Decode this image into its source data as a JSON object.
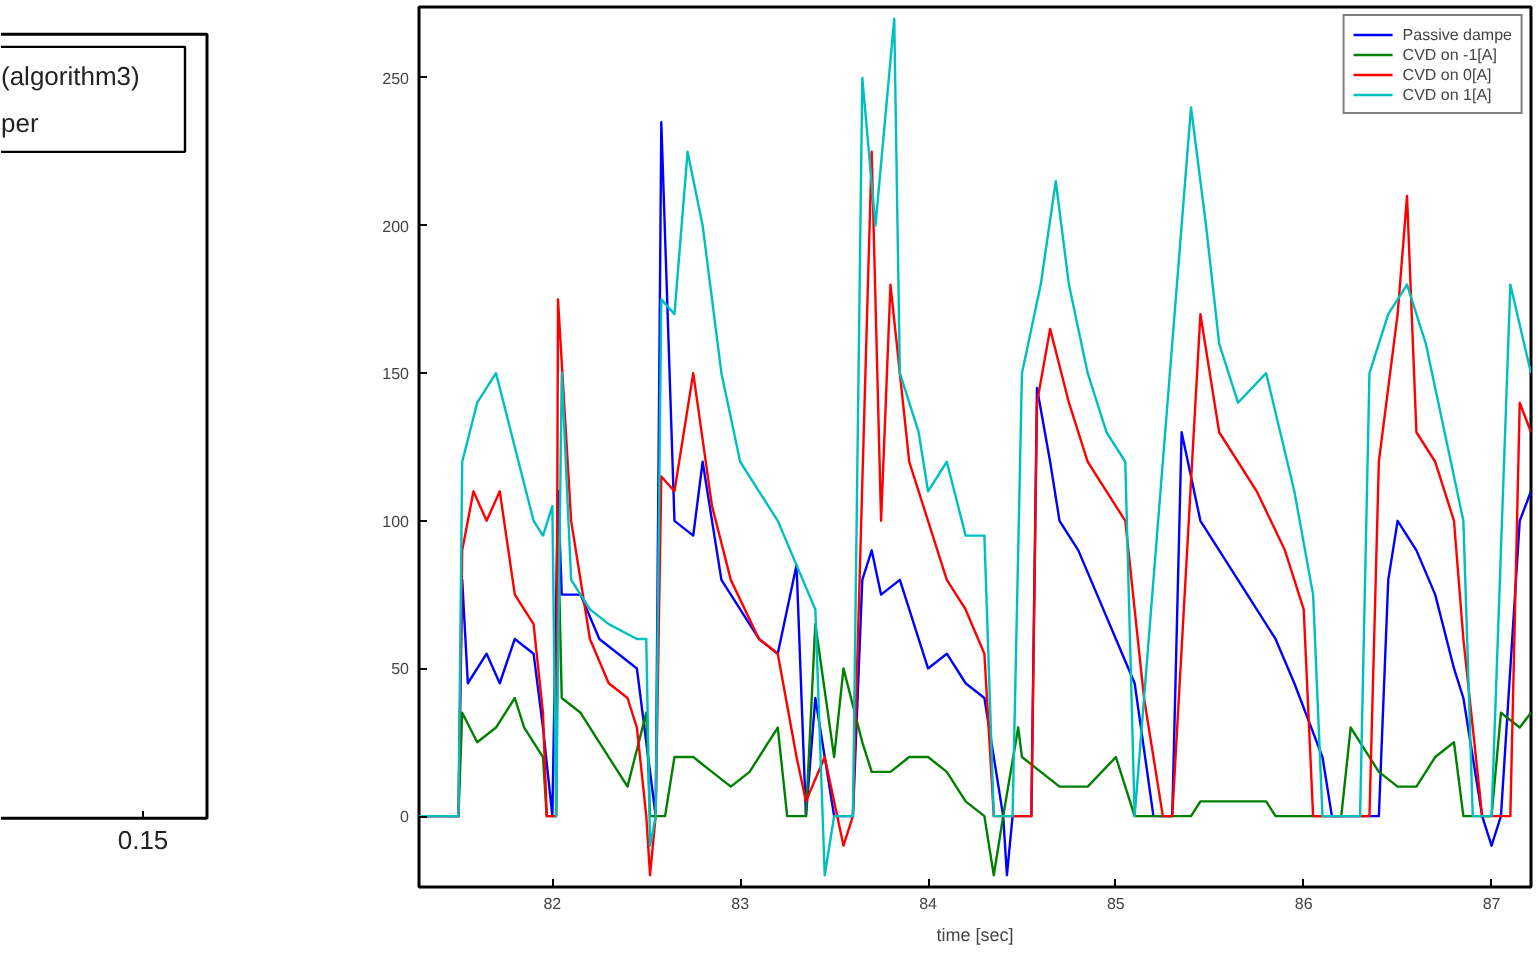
{
  "chart_data": [
    {
      "type": "other",
      "annotations": [
        "(algorithm3)",
        "per",
        "0.15"
      ]
    },
    {
      "type": "line",
      "xlabel": "time [sec]",
      "xlim": [
        81.29,
        87.21
      ],
      "xticks": [
        82,
        83,
        84,
        85,
        86,
        87
      ],
      "ylim": [
        -24,
        274
      ],
      "yticks": [
        0,
        50,
        100,
        150,
        200,
        250
      ],
      "legend": "top right",
      "grid": false,
      "series": [
        {
          "name": "Passive dampe",
          "color": "#0000ff",
          "x": [
            81.29,
            81.5,
            81.52,
            81.55,
            81.65,
            81.72,
            81.8,
            81.9,
            81.95,
            82.0,
            82.03,
            82.05,
            82.15,
            82.25,
            82.35,
            82.45,
            82.5,
            82.55,
            82.58,
            82.65,
            82.75,
            82.8,
            82.9,
            83.0,
            83.1,
            83.2,
            83.3,
            83.35,
            83.4,
            83.5,
            83.6,
            83.65,
            83.7,
            83.75,
            83.85,
            83.95,
            84.0,
            84.1,
            84.2,
            84.3,
            84.4,
            84.42,
            84.45,
            84.55,
            84.58,
            84.65,
            84.7,
            84.8,
            84.9,
            85.0,
            85.1,
            85.2,
            85.3,
            85.35,
            85.45,
            85.55,
            85.7,
            85.85,
            85.95,
            86.1,
            86.15,
            86.4,
            86.45,
            86.5,
            86.6,
            86.7,
            86.8,
            86.85,
            86.95,
            87.0,
            87.05,
            87.15,
            87.21
          ],
          "values": [
            0,
            0,
            80,
            45,
            55,
            45,
            60,
            55,
            30,
            0,
            110,
            75,
            75,
            60,
            55,
            50,
            25,
            0,
            235,
            100,
            95,
            120,
            80,
            70,
            60,
            55,
            85,
            0,
            40,
            0,
            0,
            80,
            90,
            75,
            80,
            60,
            50,
            55,
            45,
            40,
            0,
            -20,
            0,
            0,
            145,
            120,
            100,
            90,
            75,
            60,
            45,
            0,
            0,
            130,
            100,
            90,
            75,
            60,
            45,
            20,
            0,
            0,
            80,
            100,
            90,
            75,
            50,
            40,
            0,
            -10,
            0,
            100,
            110
          ]
        },
        {
          "name": "CVD on -1[A]",
          "color": "#008000",
          "x": [
            81.29,
            81.5,
            81.52,
            81.6,
            81.7,
            81.8,
            81.85,
            81.95,
            81.97,
            82.02,
            82.03,
            82.05,
            82.15,
            82.3,
            82.4,
            82.5,
            82.52,
            82.6,
            82.65,
            82.75,
            82.85,
            82.95,
            83.05,
            83.2,
            83.25,
            83.35,
            83.4,
            83.5,
            83.55,
            83.65,
            83.7,
            83.8,
            83.9,
            84.0,
            84.1,
            84.2,
            84.3,
            84.35,
            84.4,
            84.48,
            84.5,
            84.6,
            84.7,
            84.85,
            85.0,
            85.1,
            85.4,
            85.45,
            85.6,
            85.8,
            85.85,
            86.2,
            86.25,
            86.4,
            86.5,
            86.6,
            86.7,
            86.8,
            86.85,
            87.0,
            87.05,
            87.15,
            87.21
          ],
          "values": [
            0,
            0,
            35,
            25,
            30,
            40,
            30,
            20,
            0,
            0,
            95,
            40,
            35,
            20,
            10,
            35,
            0,
            0,
            20,
            20,
            15,
            10,
            15,
            30,
            0,
            0,
            65,
            20,
            50,
            25,
            15,
            15,
            20,
            20,
            15,
            5,
            0,
            -20,
            0,
            30,
            20,
            15,
            10,
            10,
            20,
            0,
            0,
            5,
            5,
            5,
            0,
            0,
            30,
            15,
            10,
            10,
            20,
            25,
            0,
            0,
            35,
            30,
            35
          ]
        },
        {
          "name": "CVD on 0[A]",
          "color": "#ff0000",
          "x": [
            81.29,
            81.5,
            81.52,
            81.58,
            81.65,
            81.72,
            81.8,
            81.9,
            81.95,
            81.97,
            82.02,
            82.03,
            82.1,
            82.2,
            82.3,
            82.4,
            82.45,
            82.5,
            82.52,
            82.55,
            82.58,
            82.65,
            82.75,
            82.85,
            82.95,
            83.1,
            83.2,
            83.3,
            83.35,
            83.45,
            83.55,
            83.6,
            83.7,
            83.75,
            83.8,
            83.9,
            84.0,
            84.1,
            84.2,
            84.3,
            84.35,
            84.55,
            84.58,
            84.65,
            84.75,
            84.85,
            84.95,
            85.05,
            85.15,
            85.25,
            85.3,
            85.45,
            85.55,
            85.65,
            85.75,
            85.9,
            86.0,
            86.05,
            86.35,
            86.4,
            86.5,
            86.55,
            86.6,
            86.7,
            86.8,
            86.85,
            86.95,
            87.1,
            87.15,
            87.21
          ],
          "values": [
            0,
            0,
            90,
            110,
            100,
            110,
            75,
            65,
            35,
            0,
            0,
            175,
            100,
            60,
            45,
            40,
            30,
            0,
            -20,
            0,
            115,
            110,
            150,
            105,
            80,
            60,
            55,
            20,
            5,
            20,
            -10,
            0,
            225,
            100,
            180,
            120,
            100,
            80,
            70,
            55,
            0,
            0,
            140,
            165,
            140,
            120,
            110,
            100,
            40,
            0,
            0,
            170,
            130,
            120,
            110,
            90,
            70,
            0,
            0,
            120,
            170,
            210,
            130,
            120,
            100,
            60,
            0,
            0,
            140,
            130
          ]
        },
        {
          "name": "CVD on 1[A]",
          "color": "#00bfbf",
          "x": [
            81.29,
            81.5,
            81.52,
            81.6,
            81.7,
            81.8,
            81.9,
            81.95,
            82.0,
            82.02,
            82.05,
            82.1,
            82.2,
            82.3,
            82.45,
            82.5,
            82.52,
            82.55,
            82.58,
            82.65,
            82.72,
            82.8,
            82.9,
            83.0,
            83.1,
            83.2,
            83.3,
            83.4,
            83.45,
            83.5,
            83.6,
            83.65,
            83.72,
            83.82,
            83.85,
            83.95,
            84.0,
            84.1,
            84.2,
            84.3,
            84.35,
            84.45,
            84.5,
            84.6,
            84.68,
            84.75,
            84.85,
            84.95,
            85.05,
            85.1,
            85.4,
            85.48,
            85.55,
            85.65,
            85.8,
            85.95,
            86.05,
            86.1,
            86.3,
            86.35,
            86.45,
            86.55,
            86.65,
            86.75,
            86.85,
            86.9,
            87.0,
            87.1,
            87.21
          ],
          "values": [
            0,
            0,
            120,
            140,
            150,
            125,
            100,
            95,
            105,
            0,
            150,
            80,
            70,
            65,
            60,
            60,
            -10,
            0,
            175,
            170,
            225,
            200,
            150,
            120,
            110,
            100,
            85,
            70,
            -20,
            0,
            0,
            250,
            200,
            270,
            150,
            130,
            110,
            120,
            95,
            95,
            0,
            0,
            150,
            180,
            215,
            180,
            150,
            130,
            120,
            0,
            240,
            200,
            160,
            140,
            150,
            110,
            75,
            0,
            0,
            150,
            170,
            180,
            160,
            130,
            100,
            0,
            0,
            180,
            150
          ]
        }
      ]
    }
  ]
}
